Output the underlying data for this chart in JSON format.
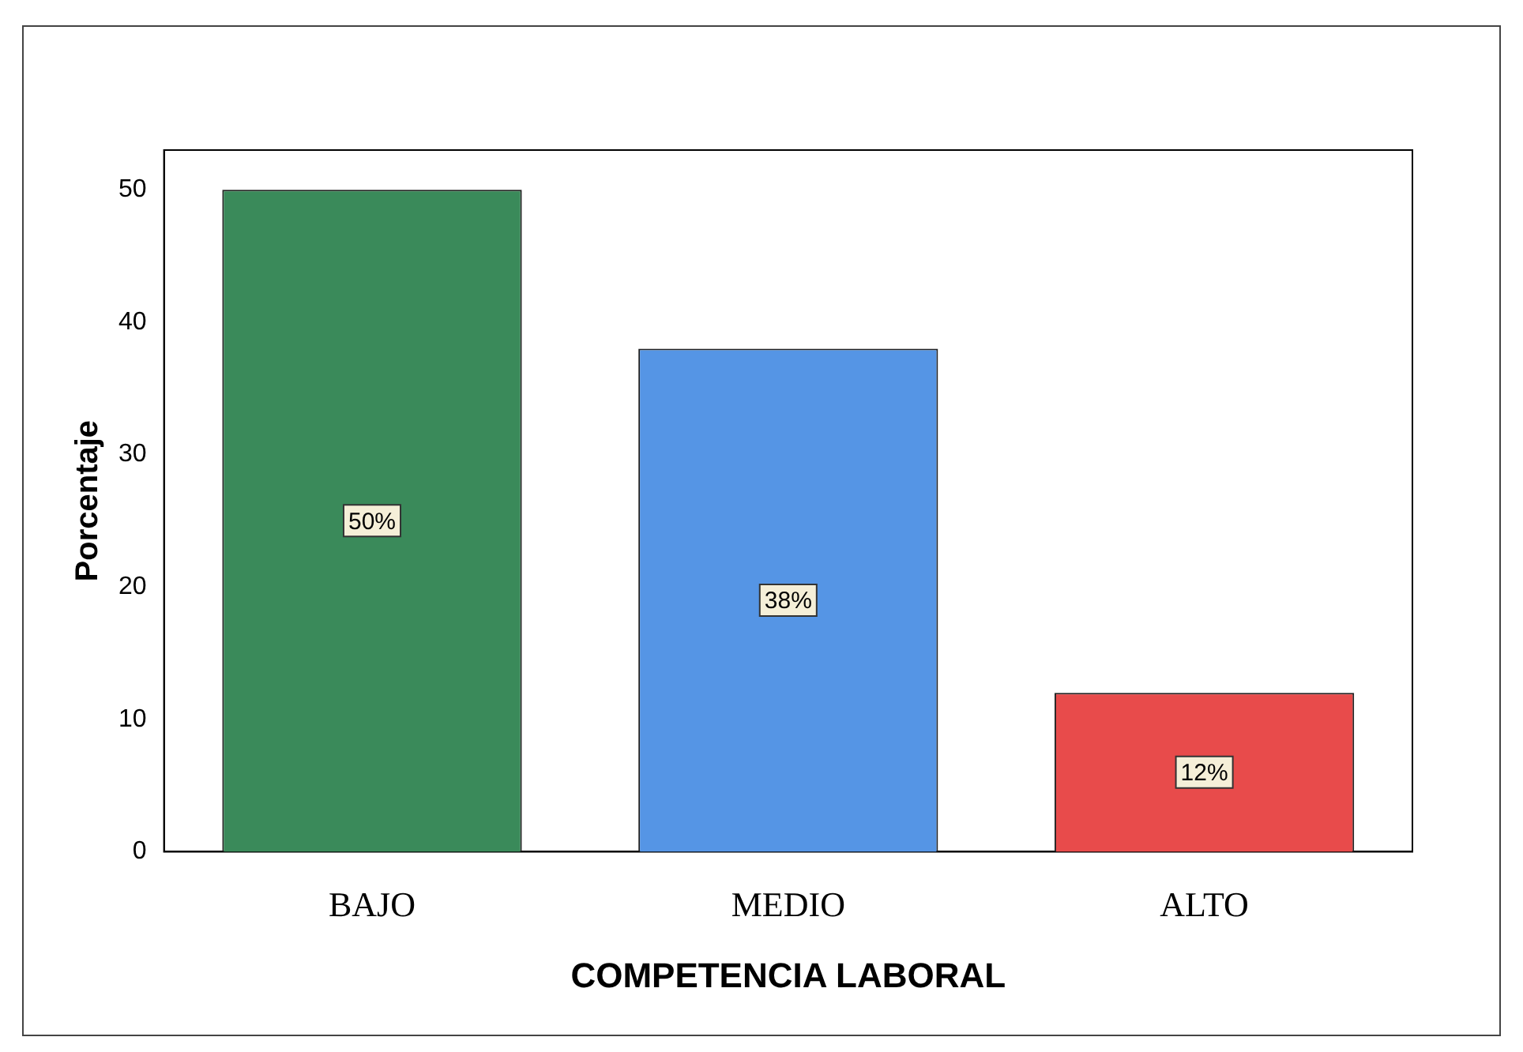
{
  "chart_data": {
    "type": "bar",
    "xlabel": "COMPETENCIA LABORAL",
    "ylabel": "Porcentaje",
    "categories": [
      "BAJO",
      "MEDIO",
      "ALTO"
    ],
    "values": [
      50,
      38,
      12
    ],
    "colors": [
      "#3a8a5a",
      "#5595e5",
      "#e84b4b"
    ],
    "value_labels": [
      "50%",
      "38%",
      "12%"
    ],
    "ylim": [
      0,
      53
    ],
    "yticks": [
      0,
      10,
      20,
      30,
      40,
      50
    ]
  }
}
